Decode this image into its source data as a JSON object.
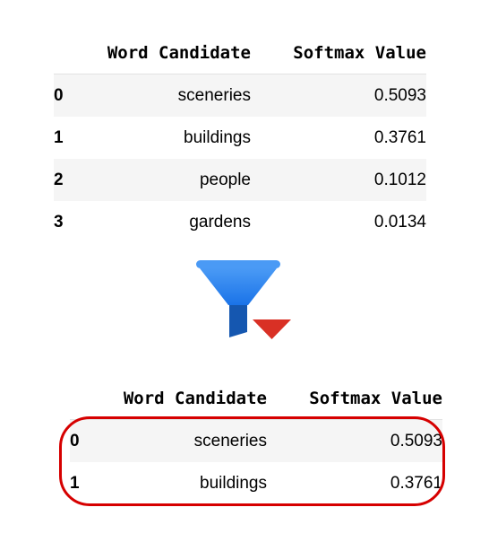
{
  "table_before": {
    "columns": [
      "Word Candidate",
      "Softmax Value"
    ],
    "rows": [
      {
        "index": "0",
        "word": "sceneries",
        "value": "0.5093"
      },
      {
        "index": "1",
        "word": "buildings",
        "value": "0.3761"
      },
      {
        "index": "2",
        "word": "people",
        "value": "0.1012"
      },
      {
        "index": "3",
        "word": "gardens",
        "value": "0.0134"
      }
    ]
  },
  "filter_icon": {
    "icon": "filter-funnel-icon",
    "funnel_top_color": "#4a9af5",
    "funnel_body_color": "#1a73e8",
    "stem_color": "#1557b0",
    "arrow_color": "#d93025"
  },
  "table_after": {
    "columns": [
      "Word Candidate",
      "Softmax Value"
    ],
    "rows": [
      {
        "index": "0",
        "word": "sceneries",
        "value": "0.5093"
      },
      {
        "index": "1",
        "word": "buildings",
        "value": "0.3761"
      }
    ]
  },
  "highlight": {
    "color": "#d60000",
    "shape": "rounded-rectangle"
  }
}
